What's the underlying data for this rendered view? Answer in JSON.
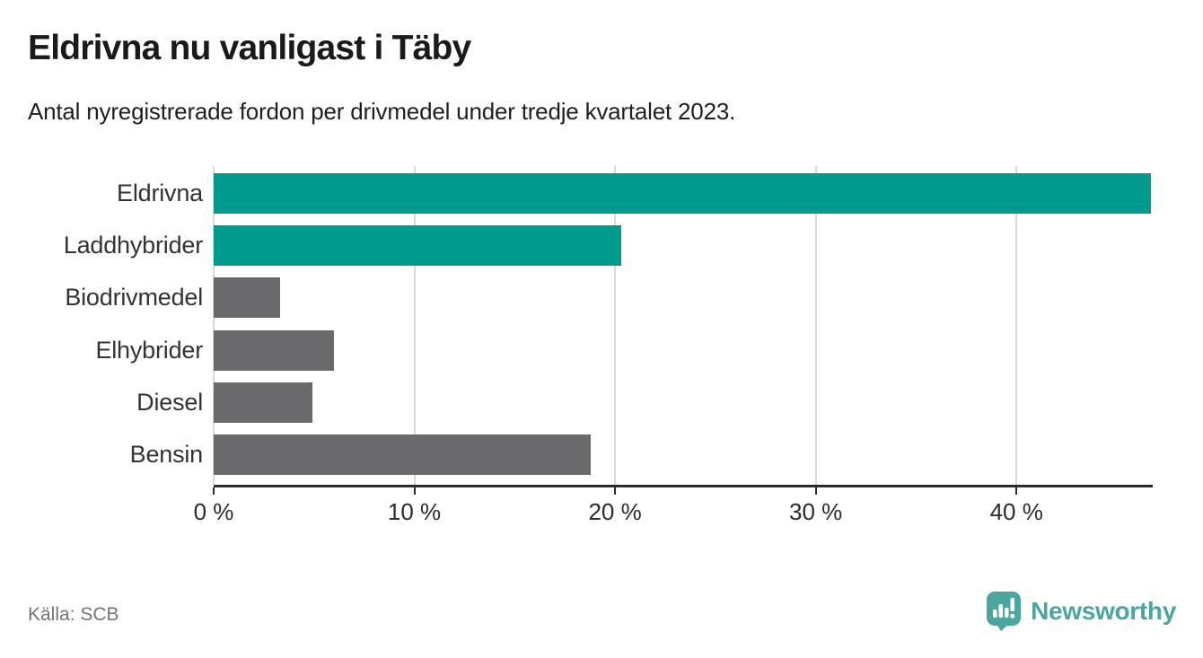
{
  "title": "Eldrivna nu vanligast i Täby",
  "subtitle": "Antal nyregistrerade fordon per drivmedel under tredje kvartalet 2023.",
  "source": "Källa: SCB",
  "brand": {
    "name": "Newsworthy",
    "icon": "newsworthy-speech-bubble-chart-icon",
    "color": "#4aa69e"
  },
  "colors": {
    "highlight_bar": "#009a8e",
    "default_bar": "#6a6a6d",
    "gridline": "#d9d9d9",
    "axis": "#2b2b2b",
    "category_label": "#333333"
  },
  "chart_data": {
    "type": "bar",
    "orientation": "horizontal",
    "title": "Eldrivna nu vanligast i Täby",
    "subtitle": "Antal nyregistrerade fordon per drivmedel under tredje kvartalet 2023.",
    "unit": "%",
    "categories": [
      "Eldrivna",
      "Laddhybrider",
      "Biodrivmedel",
      "Elhybrider",
      "Diesel",
      "Bensin"
    ],
    "values": [
      46.7,
      20.3,
      3.3,
      6.0,
      4.9,
      18.8
    ],
    "bar_colors": [
      "#009a8e",
      "#009a8e",
      "#6a6a6d",
      "#6a6a6d",
      "#6a6a6d",
      "#6a6a6d"
    ],
    "xlim": [
      0,
      46.7
    ],
    "xtick_values": [
      0,
      10,
      20,
      30,
      40
    ],
    "xtick_labels": [
      "0 %",
      "10 %",
      "20 %",
      "30 %",
      "40 %"
    ],
    "grid": "vertical",
    "legend": "none",
    "xlabel": "",
    "ylabel": ""
  }
}
